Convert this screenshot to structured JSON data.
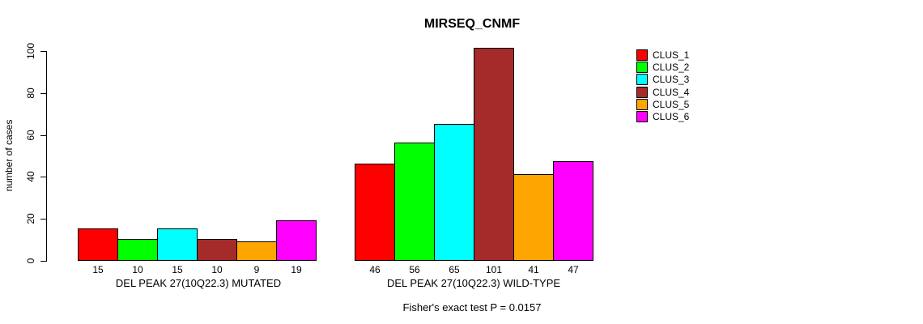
{
  "chart": {
    "title": "MIRSEQ_CNMF",
    "ylabel": "number of cases",
    "footer": "Fisher's exact test P = 0.0157"
  },
  "chart_data": {
    "type": "bar",
    "title": "MIRSEQ_CNMF",
    "xlabel": "",
    "ylabel": "number of cases",
    "ylim": [
      0,
      105
    ],
    "yticks": [
      0,
      20,
      40,
      60,
      80,
      100
    ],
    "grid": false,
    "legend_position": "right-of-plot-top",
    "categories": [
      "CLUS_1",
      "CLUS_2",
      "CLUS_3",
      "CLUS_4",
      "CLUS_5",
      "CLUS_6"
    ],
    "series_colors": [
      "#ff0000",
      "#00ff00",
      "#00ffff",
      "#a52a2a",
      "#ffa500",
      "#ff00ff"
    ],
    "groups": [
      {
        "label": "DEL PEAK 27(10Q22.3) MUTATED",
        "values": [
          15,
          10,
          15,
          10,
          9,
          19
        ]
      },
      {
        "label": "DEL PEAK 27(10Q22.3) WILD-TYPE",
        "values": [
          46,
          56,
          65,
          101,
          41,
          47
        ]
      }
    ],
    "annotation": "Fisher's exact test P = 0.0157"
  },
  "legend": {
    "items": [
      {
        "label": "CLUS_1",
        "color": "#ff0000"
      },
      {
        "label": "CLUS_2",
        "color": "#00ff00"
      },
      {
        "label": "CLUS_3",
        "color": "#00ffff"
      },
      {
        "label": "CLUS_4",
        "color": "#a52a2a"
      },
      {
        "label": "CLUS_5",
        "color": "#ffa500"
      },
      {
        "label": "CLUS_6",
        "color": "#ff00ff"
      }
    ]
  }
}
